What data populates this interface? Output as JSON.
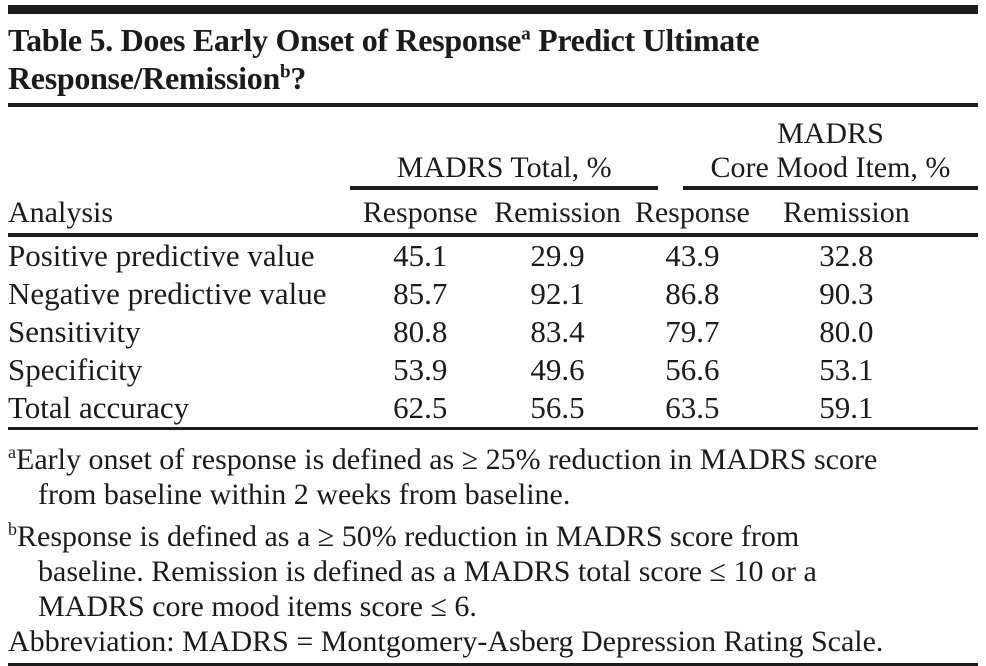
{
  "title": {
    "part1": "Table 5. Does Early Onset of Response",
    "sup1": "a",
    "part2": " Predict Ultimate",
    "part3": "Response/Remission",
    "sup2": "b",
    "part4": "?"
  },
  "table": {
    "col0_header": "Analysis",
    "group1_header": "MADRS Total, %",
    "group2_header_line1": "MADRS",
    "group2_header_line2": "Core Mood Item, %",
    "subheaders": [
      "Response",
      "Remission",
      "Response",
      "Remission"
    ],
    "rows": [
      {
        "label": "Positive predictive value",
        "values": [
          "45.1",
          "29.9",
          "43.9",
          "32.8"
        ]
      },
      {
        "label": "Negative predictive value",
        "values": [
          "85.7",
          "92.1",
          "86.8",
          "90.3"
        ]
      },
      {
        "label": "Sensitivity",
        "values": [
          "80.8",
          "83.4",
          "79.7",
          "80.0"
        ]
      },
      {
        "label": "Specificity",
        "values": [
          "53.9",
          "49.6",
          "56.6",
          "53.1"
        ]
      },
      {
        "label": "Total accuracy",
        "values": [
          "62.5",
          "56.5",
          "63.5",
          "59.1"
        ]
      }
    ]
  },
  "footnotes": [
    {
      "marker": "a",
      "lines": [
        "Early onset of response is defined as ≥ 25% reduction in MADRS score",
        "from baseline within 2 weeks from baseline."
      ]
    },
    {
      "marker": "b",
      "lines": [
        "Response is defined as a ≥ 50% reduction in MADRS score from",
        "baseline. Remission is defined as a MADRS total score ≤ 10 or a",
        "MADRS core mood items score ≤ 6."
      ]
    },
    {
      "marker": "",
      "lines": [
        "Abbreviation: MADRS = Montgomery-Asberg Depression Rating Scale."
      ]
    }
  ],
  "colors": {
    "text": "#1b1b1b",
    "rule": "#1c1c1c",
    "background": "#ffffff"
  }
}
